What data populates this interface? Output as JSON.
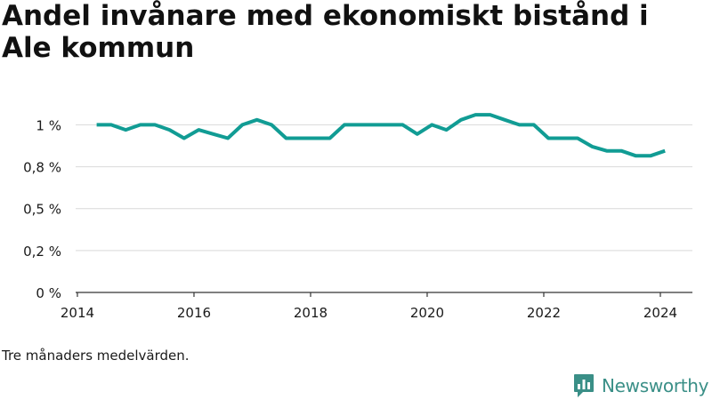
{
  "title": "Andel invånare med ekonomiskt bistånd i Ale kommun",
  "note": "Tre månaders medelvärden.",
  "brand": {
    "name": "Newsworthy",
    "icon": "newsworthy-logo-icon",
    "color": "#3a8f87"
  },
  "colors": {
    "line": "#119c94",
    "grid": "#d9d9d9",
    "axis": "#333333",
    "text": "#1a1a1a"
  },
  "chart_data": {
    "type": "line",
    "title": "Andel invånare med ekonomiskt bistånd i Ale kommun",
    "xlabel": "",
    "ylabel": "",
    "xlim": [
      2013.97,
      2024.55
    ],
    "ylim": [
      0,
      1.05
    ],
    "y_ticks": [
      {
        "value": 0,
        "label": "0 %"
      },
      {
        "value": 0.25,
        "label": "0,2 %"
      },
      {
        "value": 0.5,
        "label": "0,5 %"
      },
      {
        "value": 0.75,
        "label": "0,8 %"
      },
      {
        "value": 1.0,
        "label": "1 %"
      }
    ],
    "x_ticks": [
      {
        "value": 2014,
        "label": "2014"
      },
      {
        "value": 2016,
        "label": "2016"
      },
      {
        "value": 2018,
        "label": "2018"
      },
      {
        "value": 2020,
        "label": "2020"
      },
      {
        "value": 2022,
        "label": "2022"
      },
      {
        "value": 2024,
        "label": "2024"
      }
    ],
    "grid": true,
    "series": [
      {
        "x": [
          2014.33,
          2014.58,
          2014.83,
          2015.08,
          2015.33,
          2015.58,
          2015.83,
          2016.08,
          2016.33,
          2016.58,
          2016.83,
          2017.08,
          2017.33,
          2017.58,
          2017.83,
          2018.08,
          2018.33,
          2018.58,
          2018.83,
          2019.08,
          2019.33,
          2019.58,
          2019.83,
          2020.08,
          2020.33,
          2020.58,
          2020.83,
          2021.08,
          2021.33,
          2021.58,
          2021.83,
          2022.08,
          2022.33,
          2022.58,
          2022.83,
          2023.08,
          2023.33,
          2023.58,
          2023.83,
          2024.08
        ],
        "values": [
          1.0,
          1.0,
          0.97,
          1.0,
          1.0,
          0.97,
          0.92,
          0.97,
          0.945,
          0.92,
          1.0,
          1.03,
          1.0,
          0.92,
          0.92,
          0.92,
          0.92,
          1.0,
          1.0,
          1.0,
          1.0,
          1.0,
          0.945,
          1.0,
          0.97,
          1.03,
          1.06,
          1.06,
          1.03,
          1.0,
          1.0,
          0.92,
          0.92,
          0.92,
          0.87,
          0.845,
          0.845,
          0.815,
          0.815,
          0.845
        ]
      }
    ]
  }
}
